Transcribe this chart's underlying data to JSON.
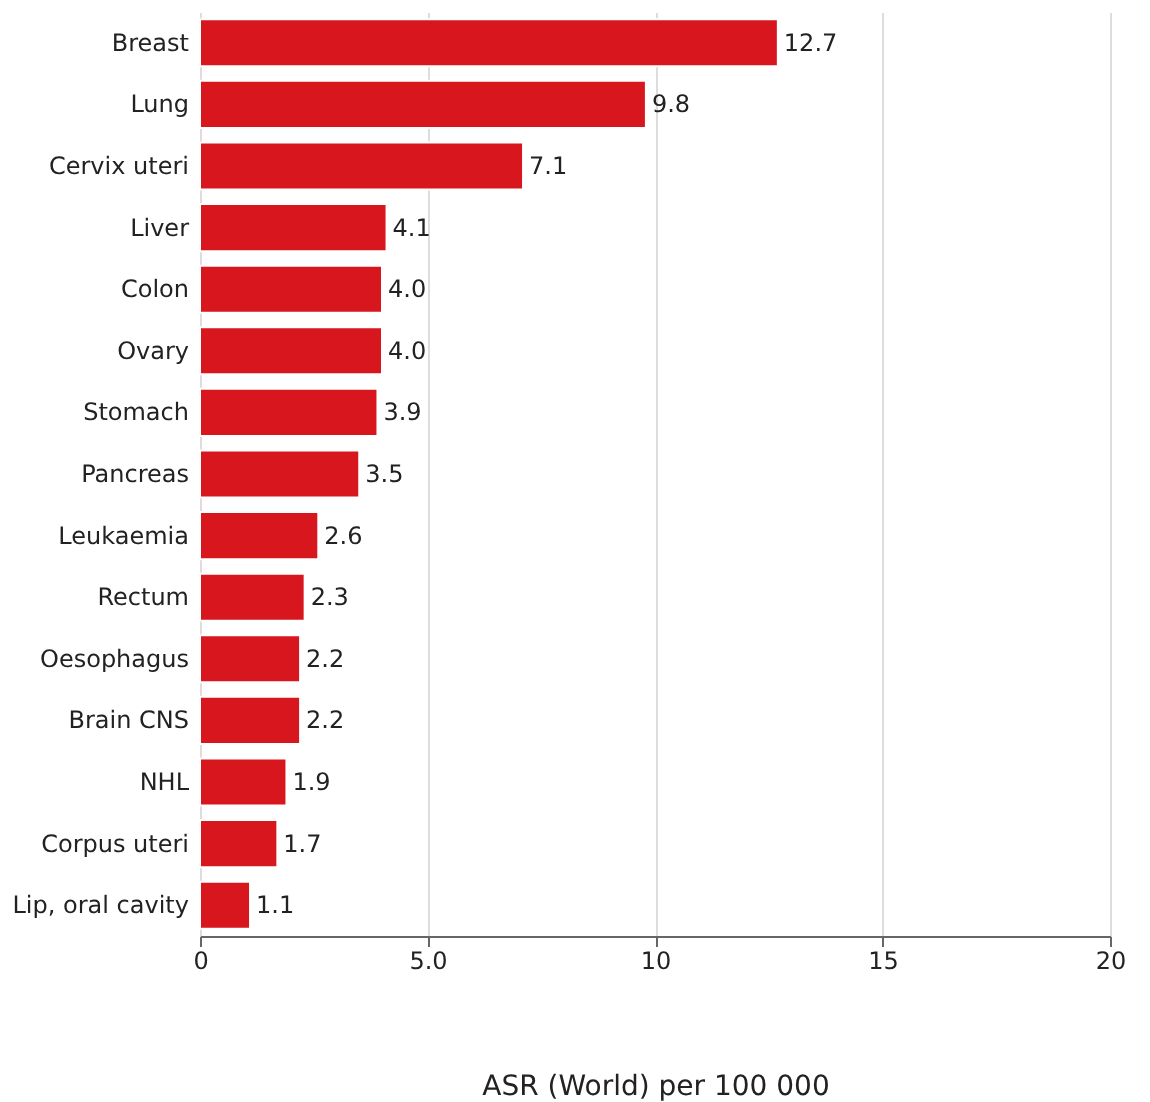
{
  "chart_data": {
    "type": "bar",
    "orientation": "horizontal",
    "xlabel": "ASR (World) per 100 000",
    "categories": [
      "Breast",
      "Lung",
      "Cervix uteri",
      "Liver",
      "Colon",
      "Ovary",
      "Stomach",
      "Pancreas",
      "Leukaemia",
      "Rectum",
      "Oesophagus",
      "Brain CNS",
      "NHL",
      "Corpus uteri",
      "Lip, oral cavity"
    ],
    "values": [
      12.7,
      9.8,
      7.1,
      4.1,
      4.0,
      4.0,
      3.9,
      3.5,
      2.6,
      2.3,
      2.2,
      2.2,
      1.9,
      1.7,
      1.1
    ],
    "color": "#d7161e",
    "xlim": [
      0,
      20
    ],
    "xticks": [
      0,
      {
        "value": 5,
        "label": "5.0"
      },
      10,
      15,
      20
    ],
    "grid": "x",
    "value_labels": [
      "12.7",
      "9.8",
      "7.1",
      "4.1",
      "4.0",
      "4.0",
      "3.9",
      "3.5",
      "2.6",
      "2.3",
      "2.2",
      "2.2",
      "1.9",
      "1.7",
      "1.1"
    ]
  }
}
